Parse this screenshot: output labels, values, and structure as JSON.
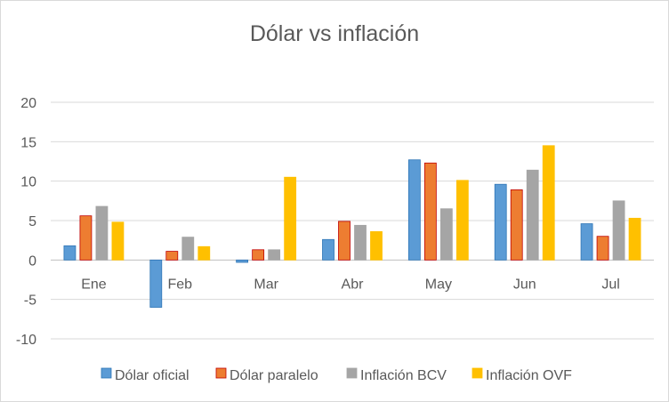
{
  "chart_data": {
    "type": "bar",
    "title": "Dólar vs inflación",
    "categories": [
      "Ene",
      "Feb",
      "Mar",
      "Abr",
      "May",
      "Jun",
      "Jul"
    ],
    "series": [
      {
        "name": "Dólar oficial",
        "color": "#5b9bd5",
        "stroke": "#2e75b6",
        "values": [
          1.8,
          -6.0,
          -0.3,
          2.6,
          12.7,
          9.6,
          4.6
        ]
      },
      {
        "name": "Dólar paralelo",
        "color": "#ed7d31",
        "stroke": "#c00000",
        "values": [
          5.6,
          1.1,
          1.3,
          4.9,
          12.3,
          8.9,
          3.0
        ]
      },
      {
        "name": "Inflación BCV",
        "color": "#a5a5a5",
        "stroke": "#a5a5a5",
        "values": [
          6.8,
          2.9,
          1.3,
          4.4,
          6.5,
          11.4,
          7.5
        ]
      },
      {
        "name": "Inflación OVF",
        "color": "#ffc000",
        "stroke": "#ffc000",
        "values": [
          4.8,
          1.7,
          10.5,
          3.6,
          10.1,
          14.5,
          5.3
        ]
      }
    ],
    "y_ticks": [
      "20",
      "15",
      "10",
      "5",
      "0",
      "-5",
      "-10"
    ],
    "ylim": [
      -10,
      20
    ],
    "grid": true,
    "legend_position": "bottom"
  }
}
